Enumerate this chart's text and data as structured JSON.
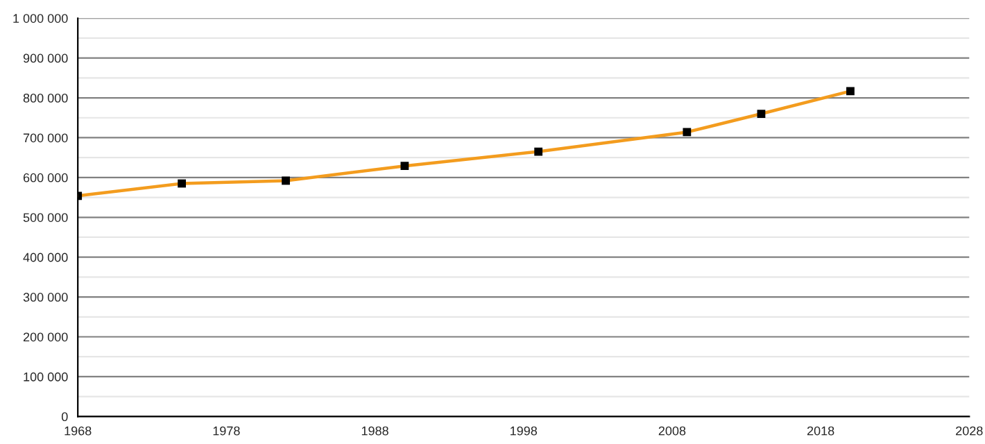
{
  "chart_data": {
    "type": "line",
    "x": [
      1968,
      1975,
      1982,
      1990,
      1999,
      2009,
      2014,
      2020
    ],
    "series": [
      {
        "color": "#f39c1e",
        "marker": "none",
        "values": [
          554000,
          585000,
          592000,
          629000,
          665000,
          714000,
          760000,
          817000
        ]
      },
      {
        "type": "scatter",
        "color": "#000000",
        "marker": "square",
        "values": [
          554000,
          585000,
          592000,
          629000,
          665000,
          714000,
          760000,
          817000
        ]
      }
    ],
    "xlim": [
      1968,
      2028
    ],
    "xticks": [
      1968,
      1978,
      1988,
      1998,
      2008,
      2018,
      2028
    ],
    "ylim": [
      0,
      1000000
    ],
    "yticks": [
      0,
      {
        "value": 100000,
        "label": "100 000"
      },
      {
        "value": 200000,
        "label": "200 000"
      },
      {
        "value": 300000,
        "label": "300 000"
      },
      {
        "value": 400000,
        "label": "400 000"
      },
      {
        "value": 500000,
        "label": "500 000"
      },
      {
        "value": 600000,
        "label": "600 000"
      },
      {
        "value": 700000,
        "label": "700 000"
      },
      {
        "value": 800000,
        "label": "800 000"
      },
      {
        "value": 900000,
        "label": "900 000"
      },
      {
        "value": 1000000,
        "label": "1 000 000"
      }
    ],
    "grid": "y",
    "legend": false
  }
}
